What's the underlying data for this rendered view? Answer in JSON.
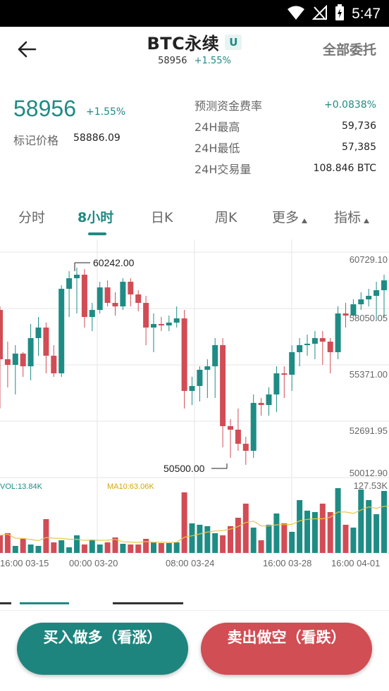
{
  "status_bar": {
    "time": "5:47",
    "icons": [
      "wifi-icon",
      "signal-icon",
      "battery-charging-icon"
    ]
  },
  "header": {
    "title": "BTC永续",
    "badge": "U",
    "sub_price": "58956",
    "sub_change": "+1.55%",
    "right_action": "全部委托"
  },
  "price_info": {
    "last_price": "58956",
    "change": "+1.55%",
    "mark_label": "标记价格",
    "mark_price": "58886.09",
    "stats": [
      {
        "label": "预测资金费率",
        "value": "+0.0838%"
      },
      {
        "label": "24H最高",
        "value": "59,736"
      },
      {
        "label": "24H最低",
        "value": "57,385"
      },
      {
        "label": "24H交易量",
        "value": "108.846 BTC"
      }
    ]
  },
  "tabs": [
    {
      "label": "分时",
      "active": false
    },
    {
      "label": "8小时",
      "active": true
    },
    {
      "label": "日K",
      "active": false
    },
    {
      "label": "周K",
      "active": false
    },
    {
      "label": "更多",
      "active": false,
      "dropdown": true
    },
    {
      "label": "指标",
      "active": false,
      "dropdown": true
    }
  ],
  "chart": {
    "price_axis": [
      "60729.10",
      "58050.05",
      "55371.00",
      "52691.95",
      "50012.90"
    ],
    "high_label": "60242.00",
    "low_label": "50500.00",
    "vol_label": "VOL:13.84K",
    "ma_label": "MA10:63.06K",
    "vol_max_label": "127.53K",
    "time_axis": [
      "16:00 03-15",
      "00:00 03-20",
      "08:00 03-24",
      "16:00 03-28",
      "16:00 04-01"
    ],
    "colors": {
      "up": "#1e8c84",
      "down": "#d24c55",
      "ma": "#e8c547",
      "grid": "#e6e6e6"
    }
  },
  "actions": {
    "buy_label": "买入做多（看涨）",
    "sell_label": "卖出做空（看跌）"
  }
}
